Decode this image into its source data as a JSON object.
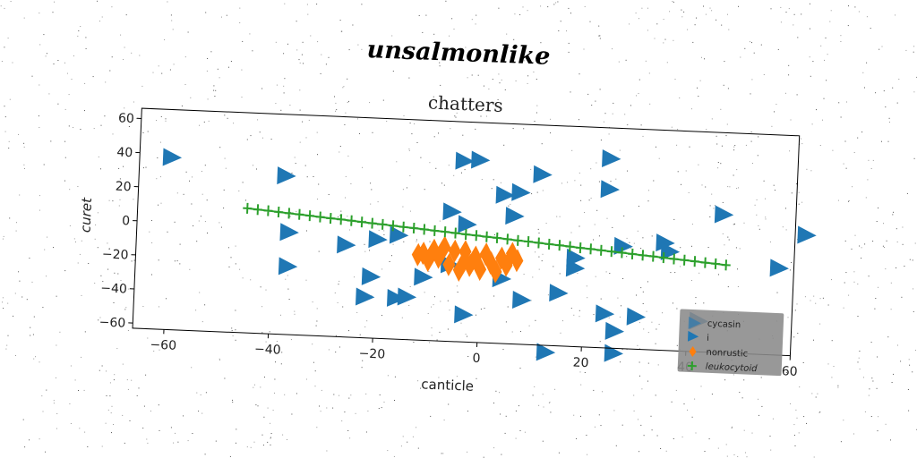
{
  "figure": {
    "super_title": "unsalmonlike"
  },
  "chart_data": {
    "type": "scatter",
    "title": "chatters",
    "xlabel": "canticle",
    "ylabel": "curet",
    "xlim": [
      -66,
      60
    ],
    "ylim": [
      -63,
      66
    ],
    "xticks": [
      -60,
      -40,
      -20,
      0,
      20,
      40,
      60
    ],
    "yticks": [
      -60,
      -40,
      -20,
      0,
      20,
      40,
      60
    ],
    "grid": false,
    "legend_placement": "lower-right",
    "legend_header": "cycasin",
    "series": [
      {
        "name": "i",
        "marker": "triangle-right",
        "color": "#1f77b4",
        "points": [
          [
            -60,
            38
          ],
          [
            -38,
            30
          ],
          [
            -37,
            -23
          ],
          [
            -37,
            -3
          ],
          [
            -26,
            -9
          ],
          [
            -22,
            -39
          ],
          [
            -21,
            -27
          ],
          [
            -20,
            -5
          ],
          [
            -16,
            -39
          ],
          [
            -16,
            -2
          ],
          [
            -14,
            -38
          ],
          [
            -11,
            -26
          ],
          [
            -6,
            13
          ],
          [
            -6,
            -18
          ],
          [
            -3,
            6
          ],
          [
            -3,
            -47
          ],
          [
            -4,
            43
          ],
          [
            -1,
            44
          ],
          [
            4,
            24
          ],
          [
            4,
            -25
          ],
          [
            6,
            12
          ],
          [
            7,
            26
          ],
          [
            8,
            -37
          ],
          [
            11,
            37
          ],
          [
            13,
            -67
          ],
          [
            15,
            -32
          ],
          [
            18,
            -17
          ],
          [
            18,
            -11
          ],
          [
            24,
            48
          ],
          [
            24,
            30
          ],
          [
            24,
            -43
          ],
          [
            26,
            -53
          ],
          [
            27,
            -3
          ],
          [
            26,
            -66
          ],
          [
            30,
            -44
          ],
          [
            35,
            0
          ],
          [
            36,
            -5
          ],
          [
            42,
            -45
          ],
          [
            46,
            18
          ],
          [
            62,
            8
          ],
          [
            57,
            -12
          ]
        ]
      },
      {
        "name": "nonrustic",
        "marker": "thin-diamond",
        "color": "#ff7f0e",
        "points": [
          [
            -12,
            -13
          ],
          [
            -11,
            -12
          ],
          [
            -10,
            -16
          ],
          [
            -9,
            -10
          ],
          [
            -8,
            -14
          ],
          [
            -7,
            -8
          ],
          [
            -6,
            -18
          ],
          [
            -5,
            -10
          ],
          [
            -4,
            -21
          ],
          [
            -3,
            -15
          ],
          [
            -3,
            -10
          ],
          [
            -2,
            -18
          ],
          [
            -1,
            -13
          ],
          [
            0,
            -20
          ],
          [
            1,
            -11
          ],
          [
            2,
            -16
          ],
          [
            3,
            -21
          ],
          [
            4,
            -13
          ],
          [
            5,
            -17
          ],
          [
            6,
            -10
          ],
          [
            7,
            -14
          ]
        ]
      },
      {
        "name": "leukocytoid",
        "marker": "plus",
        "line": true,
        "color": "#2ca02c",
        "points": [
          [
            -45,
            10
          ],
          [
            -43,
            9.5
          ],
          [
            -41,
            9.1
          ],
          [
            -39,
            8.6
          ],
          [
            -37,
            8.1
          ],
          [
            -35,
            7.7
          ],
          [
            -33,
            7.2
          ],
          [
            -31,
            6.7
          ],
          [
            -29,
            6.2
          ],
          [
            -27,
            5.8
          ],
          [
            -25,
            5.3
          ],
          [
            -23,
            4.8
          ],
          [
            -21,
            4.3
          ],
          [
            -19,
            3.9
          ],
          [
            -17,
            3.4
          ],
          [
            -15,
            2.9
          ],
          [
            -13,
            2.5
          ],
          [
            -11,
            2.0
          ],
          [
            -9,
            1.5
          ],
          [
            -7,
            1.1
          ],
          [
            -5,
            0.6
          ],
          [
            -3,
            0.1
          ],
          [
            -1,
            -0.3
          ],
          [
            1,
            -0.8
          ],
          [
            3,
            -1.2
          ],
          [
            5,
            -1.7
          ],
          [
            7,
            -2.2
          ],
          [
            9,
            -2.6
          ],
          [
            11,
            -3.1
          ],
          [
            13,
            -3.6
          ],
          [
            15,
            -4.0
          ],
          [
            17,
            -4.5
          ],
          [
            19,
            -5.0
          ],
          [
            21,
            -5.4
          ],
          [
            23,
            -5.9
          ],
          [
            25,
            -6.4
          ],
          [
            27,
            -6.8
          ],
          [
            29,
            -7.3
          ],
          [
            31,
            -7.8
          ],
          [
            33,
            -8.2
          ],
          [
            35,
            -8.7
          ],
          [
            37,
            -9.2
          ],
          [
            39,
            -9.6
          ],
          [
            41,
            -10.1
          ],
          [
            43,
            -10.6
          ],
          [
            45,
            -11.0
          ],
          [
            47,
            -11.5
          ]
        ]
      }
    ]
  }
}
